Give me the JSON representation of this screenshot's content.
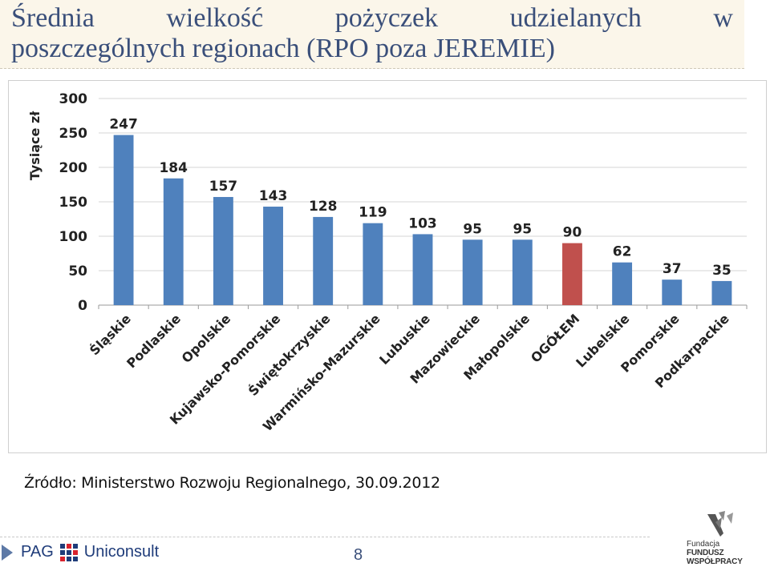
{
  "slide": {
    "title_line1_words": [
      "Średnia",
      "wielkość",
      "pożyczek",
      "udzielanych",
      "w"
    ],
    "title_line2": "poszczególnych regionach (RPO poza JEREMIE)",
    "source": "Źródło: Ministerstwo Rozwoju Regionalnego, 30.09.2012",
    "page_number": "8",
    "footer_logo_text_1": "PAG",
    "footer_logo_text_2": "Uniconsult",
    "fund_logo_line1": "Fundacja",
    "fund_logo_line2": "FUNDUSZ WSPÓŁPRACY"
  },
  "chart_data": {
    "type": "bar",
    "ylabel": "Tysiące zł",
    "ylim": [
      0,
      300
    ],
    "yticks": [
      0,
      50,
      100,
      150,
      200,
      250,
      300
    ],
    "grid": true,
    "categories": [
      "Śląskie",
      "Podlaskie",
      "Opolskie",
      "Kujawsko-Pomorskie",
      "Świętokrzyskie",
      "Warmińsko-Mazurskie",
      "Lubuskie",
      "Mazowieckie",
      "Małopolskie",
      "OGÓŁEM",
      "Lubelskie",
      "Pomorskie",
      "Podkarpackie"
    ],
    "values": [
      247,
      184,
      157,
      143,
      128,
      119,
      103,
      95,
      95,
      90,
      62,
      37,
      35
    ],
    "bar_color": "#4f81bd",
    "highlight_color": "#c0504d",
    "highlight_category": "OGÓŁEM"
  }
}
